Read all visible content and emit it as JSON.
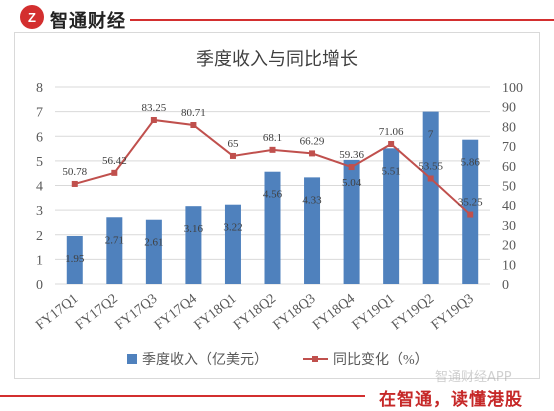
{
  "header": {
    "logo": "Z",
    "brand": "智通财经"
  },
  "footer": {
    "slogan": "在智通，读懂港股"
  },
  "watermark": "智通财经APP",
  "colors": {
    "bar": "#4f81bd",
    "line": "#c0504d",
    "accent": "#d32f2f",
    "grid": "#d9d9d9"
  },
  "chart_data": {
    "type": "bar",
    "title": "季度收入与同比增长",
    "categories": [
      "FY17Q1",
      "FY17Q2",
      "FY17Q3",
      "FY17Q4",
      "FY18Q1",
      "FY18Q2",
      "FY18Q3",
      "FY18Q4",
      "FY19Q1",
      "FY19Q2",
      "FY19Q3"
    ],
    "series": [
      {
        "name": "季度收入（亿美元）",
        "type": "bar",
        "axis": "left",
        "values": [
          1.95,
          2.71,
          2.61,
          3.16,
          3.22,
          4.56,
          4.33,
          5.04,
          5.51,
          7,
          5.86
        ]
      },
      {
        "name": "同比变化（%）",
        "type": "line",
        "axis": "right",
        "values": [
          50.78,
          56.42,
          83.25,
          80.71,
          65,
          68.1,
          66.29,
          59.36,
          71.06,
          53.55,
          35.25
        ]
      }
    ],
    "ylim_left": [
      0,
      8
    ],
    "ylim_right": [
      0,
      100
    ],
    "yticks_left": [
      "0",
      "1",
      "2",
      "3",
      "4",
      "5",
      "6",
      "7",
      "8"
    ],
    "yticks_right": [
      "0",
      "10",
      "20",
      "30",
      "40",
      "50",
      "60",
      "70",
      "80",
      "90",
      "100"
    ],
    "grid": true,
    "legend": "bottom"
  }
}
